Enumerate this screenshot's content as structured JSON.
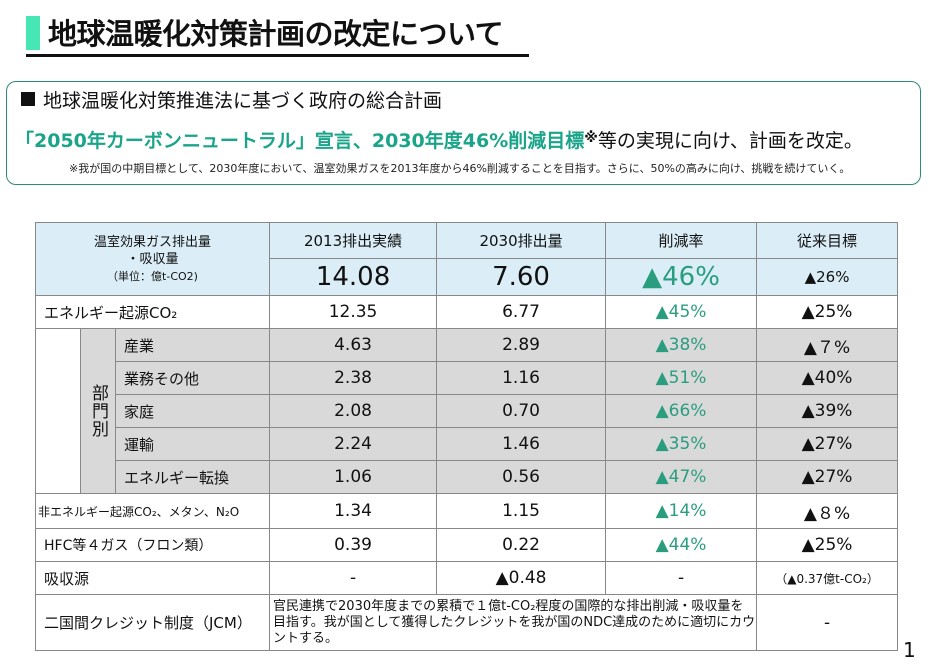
{
  "title": "地球温暖化対策計画の改定について",
  "summary": {
    "line1": "地球温暖化対策推進法に基づく政府の総合計画",
    "line2_highlight": "「2050年カーボンニュートラル」宣言、2030年度46%削減目標",
    "line2_mark": "※",
    "line2_rest": "等の実現に向け、計画を改定。",
    "note": "※我が国の中期目標として、2030年度において、温室効果ガスを2013年度から46%削減することを目指す。さらに、50%の高みに向け、挑戦を続けていく。"
  },
  "table": {
    "header": {
      "gas_label_1": "温室効果ガス排出量",
      "gas_label_2": "・吸収量",
      "unit": "（単位：億t-CO2)",
      "col_2013": "2013排出実績",
      "col_2030": "2030排出量",
      "col_rate": "削減率",
      "col_prev": "従来目標"
    },
    "total": {
      "v2013": "14.08",
      "v2030": "7.60",
      "rate": "▲46%",
      "prev": "▲26%"
    },
    "energy_co2": {
      "label": "エネルギー起源CO₂",
      "v2013": "12.35",
      "v2030": "6.77",
      "rate": "▲45%",
      "prev": "▲25%"
    },
    "sector_label": "部門別",
    "sectors": [
      {
        "label": "産業",
        "v2013": "4.63",
        "v2030": "2.89",
        "rate": "▲38%",
        "prev": "▲７%"
      },
      {
        "label": "業務その他",
        "v2013": "2.38",
        "v2030": "1.16",
        "rate": "▲51%",
        "prev": "▲40%"
      },
      {
        "label": "家庭",
        "v2013": "2.08",
        "v2030": "0.70",
        "rate": "▲66%",
        "prev": "▲39%"
      },
      {
        "label": "運輸",
        "v2013": "2.24",
        "v2030": "1.46",
        "rate": "▲35%",
        "prev": "▲27%"
      },
      {
        "label": "エネルギー転換",
        "v2013": "1.06",
        "v2030": "0.56",
        "rate": "▲47%",
        "prev": "▲27%"
      }
    ],
    "non_energy": {
      "label": "非エネルギー起源CO₂、メタン、N₂O",
      "v2013": "1.34",
      "v2030": "1.15",
      "rate": "▲14%",
      "prev": "▲８%"
    },
    "hfc": {
      "label": "HFC等４ガス（フロン類）",
      "v2013": "0.39",
      "v2030": "0.22",
      "rate": "▲44%",
      "prev": "▲25%"
    },
    "sink": {
      "label": "吸収源",
      "v2013": "-",
      "v2030": "▲0.48",
      "rate": "-",
      "prev": "（▲0.37億t-CO₂）"
    },
    "jcm": {
      "label": "二国間クレジット制度（JCM）",
      "text": "官民連携で2030年度までの累積で１億t-CO₂程度の国際的な排出削減・吸収量を目指す。我が国として獲得したクレジットを我が国のNDC達成のために適切にカウントする。",
      "prev": "-"
    }
  },
  "page_number": "1",
  "colors": {
    "accent": "#1aa489",
    "title_bar": "#46e6b5",
    "header_bg": "#dbeef7",
    "sector_bg": "#d9d9d9"
  }
}
